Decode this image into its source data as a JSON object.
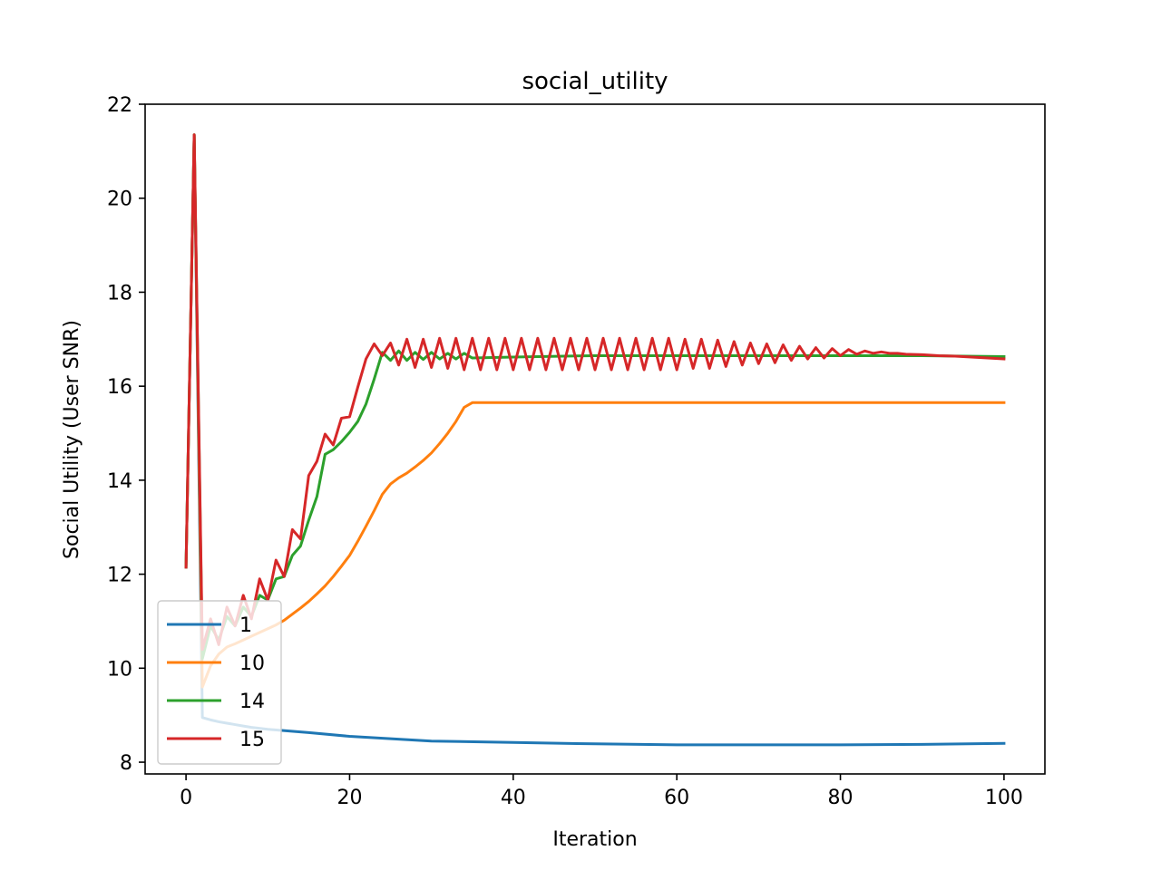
{
  "chart_data": {
    "type": "line",
    "title": "social_utility",
    "xlabel": "Iteration",
    "ylabel": "Social Utility (User SNR)",
    "xlim": [
      -5,
      105
    ],
    "ylim": [
      7.75,
      22.0
    ],
    "xticks": [
      0,
      20,
      40,
      60,
      80,
      100
    ],
    "yticks": [
      8,
      10,
      12,
      14,
      16,
      18,
      20,
      22
    ],
    "grid": false,
    "legend_position": "lower-left",
    "series": [
      {
        "name": "1",
        "color": "#1f77b4",
        "points": [
          [
            0,
            12.15
          ],
          [
            1,
            21.35
          ],
          [
            2,
            8.95
          ],
          [
            3,
            8.9
          ],
          [
            4,
            8.86
          ],
          [
            5,
            8.83
          ],
          [
            6,
            8.8
          ],
          [
            7,
            8.77
          ],
          [
            8,
            8.74
          ],
          [
            10,
            8.7
          ],
          [
            15,
            8.63
          ],
          [
            20,
            8.55
          ],
          [
            25,
            8.5
          ],
          [
            30,
            8.45
          ],
          [
            40,
            8.42
          ],
          [
            50,
            8.39
          ],
          [
            60,
            8.37
          ],
          [
            70,
            8.37
          ],
          [
            80,
            8.37
          ],
          [
            90,
            8.38
          ],
          [
            100,
            8.4
          ]
        ]
      },
      {
        "name": "10",
        "color": "#ff7f0e",
        "points": [
          [
            0,
            12.15
          ],
          [
            1,
            21.35
          ],
          [
            2,
            9.6
          ],
          [
            3,
            10.05
          ],
          [
            4,
            10.3
          ],
          [
            5,
            10.45
          ],
          [
            6,
            10.52
          ],
          [
            7,
            10.6
          ],
          [
            8,
            10.68
          ],
          [
            9,
            10.76
          ],
          [
            10,
            10.84
          ],
          [
            11,
            10.92
          ],
          [
            12,
            11.02
          ],
          [
            13,
            11.15
          ],
          [
            14,
            11.28
          ],
          [
            15,
            11.42
          ],
          [
            16,
            11.58
          ],
          [
            17,
            11.75
          ],
          [
            18,
            11.95
          ],
          [
            19,
            12.17
          ],
          [
            20,
            12.4
          ],
          [
            21,
            12.7
          ],
          [
            22,
            13.02
          ],
          [
            23,
            13.35
          ],
          [
            24,
            13.7
          ],
          [
            25,
            13.92
          ],
          [
            26,
            14.05
          ],
          [
            27,
            14.15
          ],
          [
            28,
            14.28
          ],
          [
            29,
            14.42
          ],
          [
            30,
            14.58
          ],
          [
            31,
            14.78
          ],
          [
            32,
            15.0
          ],
          [
            33,
            15.25
          ],
          [
            34,
            15.55
          ],
          [
            35,
            15.65
          ],
          [
            40,
            15.65
          ],
          [
            50,
            15.65
          ],
          [
            60,
            15.65
          ],
          [
            70,
            15.65
          ],
          [
            80,
            15.65
          ],
          [
            90,
            15.65
          ],
          [
            100,
            15.65
          ]
        ]
      },
      {
        "name": "14",
        "color": "#2ca02c",
        "points": [
          [
            0,
            12.15
          ],
          [
            1,
            21.35
          ],
          [
            2,
            10.2
          ],
          [
            3,
            10.9
          ],
          [
            4,
            10.6
          ],
          [
            5,
            11.1
          ],
          [
            6,
            10.9
          ],
          [
            7,
            11.3
          ],
          [
            8,
            11.1
          ],
          [
            9,
            11.55
          ],
          [
            10,
            11.45
          ],
          [
            11,
            11.9
          ],
          [
            12,
            11.95
          ],
          [
            13,
            12.4
          ],
          [
            14,
            12.6
          ],
          [
            15,
            13.15
          ],
          [
            16,
            13.65
          ],
          [
            17,
            14.55
          ],
          [
            18,
            14.65
          ],
          [
            19,
            14.82
          ],
          [
            20,
            15.02
          ],
          [
            21,
            15.25
          ],
          [
            22,
            15.62
          ],
          [
            23,
            16.15
          ],
          [
            24,
            16.72
          ],
          [
            25,
            16.55
          ],
          [
            26,
            16.75
          ],
          [
            27,
            16.55
          ],
          [
            28,
            16.72
          ],
          [
            29,
            16.57
          ],
          [
            30,
            16.72
          ],
          [
            31,
            16.58
          ],
          [
            32,
            16.7
          ],
          [
            33,
            16.58
          ],
          [
            34,
            16.7
          ],
          [
            35,
            16.6
          ],
          [
            40,
            16.62
          ],
          [
            50,
            16.65
          ],
          [
            60,
            16.65
          ],
          [
            70,
            16.65
          ],
          [
            80,
            16.65
          ],
          [
            90,
            16.65
          ],
          [
            100,
            16.63
          ]
        ]
      },
      {
        "name": "15",
        "color": "#d62728",
        "points": [
          [
            0,
            12.15
          ],
          [
            1,
            21.35
          ],
          [
            2,
            10.4
          ],
          [
            3,
            11.05
          ],
          [
            4,
            10.5
          ],
          [
            5,
            11.3
          ],
          [
            6,
            10.9
          ],
          [
            7,
            11.55
          ],
          [
            8,
            11.05
          ],
          [
            9,
            11.9
          ],
          [
            10,
            11.45
          ],
          [
            11,
            12.3
          ],
          [
            12,
            11.95
          ],
          [
            13,
            12.95
          ],
          [
            14,
            12.75
          ],
          [
            15,
            14.1
          ],
          [
            16,
            14.4
          ],
          [
            17,
            14.98
          ],
          [
            18,
            14.75
          ],
          [
            19,
            15.32
          ],
          [
            20,
            15.35
          ],
          [
            21,
            15.98
          ],
          [
            22,
            16.58
          ],
          [
            23,
            16.9
          ],
          [
            24,
            16.65
          ],
          [
            25,
            16.92
          ],
          [
            26,
            16.45
          ],
          [
            27,
            17.0
          ],
          [
            28,
            16.4
          ],
          [
            29,
            17.0
          ],
          [
            30,
            16.4
          ],
          [
            31,
            17.02
          ],
          [
            32,
            16.38
          ],
          [
            33,
            17.02
          ],
          [
            34,
            16.35
          ],
          [
            35,
            17.02
          ],
          [
            36,
            16.35
          ],
          [
            37,
            17.02
          ],
          [
            38,
            16.35
          ],
          [
            39,
            17.02
          ],
          [
            40,
            16.35
          ],
          [
            41,
            17.02
          ],
          [
            42,
            16.35
          ],
          [
            43,
            17.02
          ],
          [
            44,
            16.35
          ],
          [
            45,
            17.02
          ],
          [
            46,
            16.35
          ],
          [
            47,
            17.02
          ],
          [
            48,
            16.35
          ],
          [
            49,
            17.02
          ],
          [
            50,
            16.35
          ],
          [
            51,
            17.02
          ],
          [
            52,
            16.35
          ],
          [
            53,
            17.02
          ],
          [
            54,
            16.35
          ],
          [
            55,
            17.02
          ],
          [
            56,
            16.35
          ],
          [
            57,
            17.02
          ],
          [
            58,
            16.35
          ],
          [
            59,
            17.02
          ],
          [
            60,
            16.35
          ],
          [
            61,
            17.0
          ],
          [
            62,
            16.38
          ],
          [
            63,
            17.0
          ],
          [
            64,
            16.38
          ],
          [
            65,
            16.98
          ],
          [
            66,
            16.42
          ],
          [
            67,
            16.95
          ],
          [
            68,
            16.45
          ],
          [
            69,
            16.92
          ],
          [
            70,
            16.48
          ],
          [
            71,
            16.9
          ],
          [
            72,
            16.5
          ],
          [
            73,
            16.88
          ],
          [
            74,
            16.55
          ],
          [
            75,
            16.85
          ],
          [
            76,
            16.58
          ],
          [
            77,
            16.82
          ],
          [
            78,
            16.6
          ],
          [
            79,
            16.8
          ],
          [
            80,
            16.65
          ],
          [
            81,
            16.78
          ],
          [
            82,
            16.68
          ],
          [
            83,
            16.75
          ],
          [
            84,
            16.7
          ],
          [
            85,
            16.73
          ],
          [
            86,
            16.7
          ],
          [
            87,
            16.7
          ],
          [
            88,
            16.68
          ],
          [
            90,
            16.67
          ],
          [
            92,
            16.65
          ],
          [
            94,
            16.64
          ],
          [
            96,
            16.62
          ],
          [
            98,
            16.6
          ],
          [
            100,
            16.58
          ]
        ]
      }
    ]
  }
}
